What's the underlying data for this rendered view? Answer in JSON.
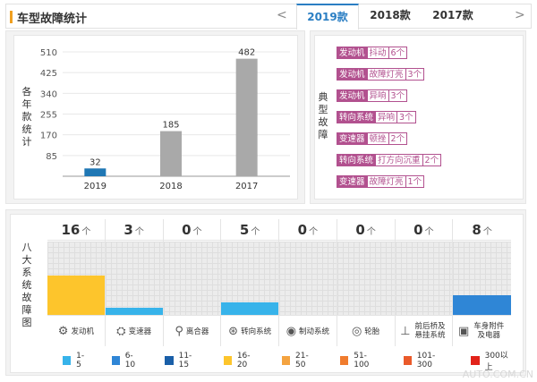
{
  "header": {
    "title": "车型故障统计",
    "prev_arrow": "<",
    "next_arrow": ">",
    "tabs": [
      {
        "label": "2019款",
        "active": true
      },
      {
        "label": "2018款",
        "active": false
      },
      {
        "label": "2017款",
        "active": false
      }
    ]
  },
  "yearly_chart": {
    "side_label": "各年款统计",
    "chart_data": {
      "type": "bar",
      "categories": [
        "2019",
        "2018",
        "2017"
      ],
      "values": [
        32,
        185,
        482
      ],
      "yticks": [
        85,
        170,
        255,
        340,
        425,
        510
      ],
      "ylim": [
        0,
        510
      ],
      "colors": [
        "#1f77b4",
        "#a9a9a9",
        "#a9a9a9"
      ]
    }
  },
  "typical_faults": {
    "side_label": "典型故障",
    "items": [
      {
        "category": "发动机",
        "symptom": "抖动",
        "count": "6个"
      },
      {
        "category": "发动机",
        "symptom": "故障灯亮",
        "count": "3个"
      },
      {
        "category": "发动机",
        "symptom": "异响",
        "count": "3个"
      },
      {
        "category": "转向系统",
        "symptom": "异响",
        "count": "3个"
      },
      {
        "category": "变速器",
        "symptom": "顿挫",
        "count": "2个"
      },
      {
        "category": "转向系统",
        "symptom": "打方向沉重",
        "count": "2个"
      },
      {
        "category": "变速器",
        "symptom": "故障灯亮",
        "count": "1个"
      }
    ]
  },
  "systems": {
    "side_label": "八大系统故障图",
    "unit": "个",
    "items": [
      {
        "name": "发动机",
        "count": 16,
        "color": "#fdc52c",
        "icon": "engine-icon",
        "glyph": "⚙"
      },
      {
        "name": "变速器",
        "count": 3,
        "color": "#37b3ea",
        "icon": "gear-shift-icon",
        "glyph": "⛭"
      },
      {
        "name": "离合器",
        "count": 0,
        "color": "#37b3ea",
        "icon": "clutch-pedal-icon",
        "glyph": "⚲"
      },
      {
        "name": "转向系统",
        "count": 5,
        "color": "#37b3ea",
        "icon": "steering-wheel-icon",
        "glyph": "⊛"
      },
      {
        "name": "制动系统",
        "count": 0,
        "color": "#37b3ea",
        "icon": "brake-disc-icon",
        "glyph": "◉"
      },
      {
        "name": "轮胎",
        "count": 0,
        "color": "#37b3ea",
        "icon": "tire-icon",
        "glyph": "◎"
      },
      {
        "name": "前后桥及悬挂系统",
        "count": 0,
        "color": "#37b3ea",
        "icon": "suspension-icon",
        "glyph": "⊥"
      },
      {
        "name": "车身附件及电器",
        "count": 8,
        "color": "#2f86d6",
        "icon": "car-body-icon",
        "glyph": "▣"
      }
    ],
    "scale_max": 30
  },
  "legend": [
    {
      "label": "1-5",
      "color": "#37b3ea"
    },
    {
      "label": "6-10",
      "color": "#2f86d6"
    },
    {
      "label": "11-15",
      "color": "#1a5fa8"
    },
    {
      "label": "16-20",
      "color": "#fdc52c"
    },
    {
      "label": "21-50",
      "color": "#f4a340"
    },
    {
      "label": "51-100",
      "color": "#f07c2e"
    },
    {
      "label": "101-300",
      "color": "#ea5a2a"
    },
    {
      "label": "300以上",
      "color": "#e2231a"
    }
  ],
  "watermark": "AUTO.COM.CN"
}
